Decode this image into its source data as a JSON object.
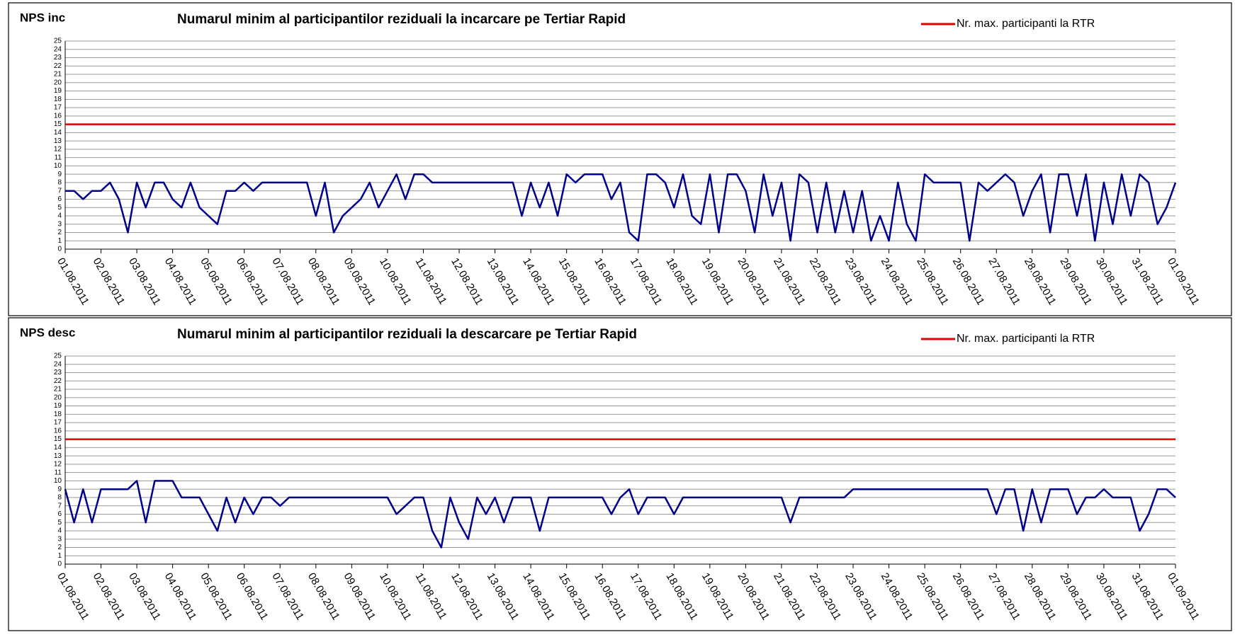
{
  "chart_data": [
    {
      "type": "line",
      "label": "NPS inc",
      "title": "Numarul minim al participantilor reziduali la incarcare  pe Tertiar Rapid",
      "categories": [
        "01.08.2011",
        null,
        null,
        null,
        "02.08.2011",
        null,
        null,
        null,
        "03.08.2011",
        null,
        null,
        null,
        "04.08.2011",
        null,
        null,
        null,
        "05.08.2011",
        null,
        null,
        null,
        "06.08.2011",
        null,
        null,
        null,
        "07.08.2011",
        null,
        null,
        null,
        "08.08.2011",
        null,
        null,
        null,
        "09.08.2011",
        null,
        null,
        null,
        "10.08.2011",
        null,
        null,
        null,
        "11.08.2011",
        null,
        null,
        null,
        "12.08.2011",
        null,
        null,
        null,
        "13.08.2011",
        null,
        null,
        null,
        "14.08.2011",
        null,
        null,
        null,
        "15.08.2011",
        null,
        null,
        null,
        "16.08.2011",
        null,
        null,
        null,
        "17.08.2011",
        null,
        null,
        null,
        "18.08.2011",
        null,
        null,
        null,
        "19.08.2011",
        null,
        null,
        null,
        "20.08.2011",
        null,
        null,
        null,
        "21.08.2011",
        null,
        null,
        null,
        "22.08.2011",
        null,
        null,
        null,
        "23.08.2011",
        null,
        null,
        null,
        "24.08.2011",
        null,
        null,
        null,
        "25.08.2011",
        null,
        null,
        null,
        "26.08.2011",
        null,
        null,
        null,
        "27.08.2011",
        null,
        null,
        null,
        "28.08.2011",
        null,
        null,
        null,
        "29.08.2011",
        null,
        null,
        null,
        "30.08.2011",
        null,
        null,
        null,
        "31.08.2011",
        null,
        null,
        null,
        "01.09.2011"
      ],
      "series": [
        {
          "color": "#00008b",
          "values": [
            7,
            7,
            6,
            7,
            7,
            8,
            6,
            2,
            8,
            5,
            8,
            8,
            6,
            5,
            8,
            5,
            4,
            3,
            7,
            7,
            8,
            7,
            8,
            8,
            8,
            8,
            8,
            8,
            4,
            8,
            2,
            4,
            5,
            6,
            8,
            5,
            7,
            9,
            6,
            9,
            9,
            8,
            8,
            8,
            8,
            8,
            8,
            8,
            8,
            8,
            8,
            4,
            8,
            5,
            8,
            4,
            9,
            8,
            9,
            9,
            9,
            6,
            8,
            2,
            1,
            9,
            9,
            8,
            5,
            9,
            4,
            3,
            9,
            2,
            9,
            9,
            7,
            2,
            9,
            4,
            8,
            1,
            9,
            8,
            2,
            8,
            2,
            7,
            2,
            7,
            1,
            4,
            1,
            8,
            3,
            1,
            9,
            8,
            8,
            8,
            8,
            1,
            8,
            7,
            8,
            9,
            8,
            4,
            7,
            9,
            2,
            9,
            9,
            4,
            9,
            1,
            8,
            3,
            9,
            4,
            9,
            8,
            3,
            5,
            8
          ]
        }
      ],
      "reference_line": {
        "name": "Nr. max. participanti la RTR",
        "value": 15,
        "color": "#e00000"
      },
      "ylim": [
        0,
        25
      ],
      "yticks": [
        0,
        1,
        2,
        3,
        4,
        5,
        6,
        7,
        8,
        9,
        10,
        11,
        12,
        13,
        14,
        15,
        16,
        17,
        18,
        19,
        20,
        21,
        22,
        23,
        24,
        25
      ],
      "grid": true
    },
    {
      "type": "line",
      "label": "NPS desc",
      "title": "Numarul minim al participantilor reziduali la descarcare  pe Tertiar Rapid",
      "categories": [
        "01.08.2011",
        null,
        null,
        null,
        "02.08.2011",
        null,
        null,
        null,
        "03.08.2011",
        null,
        null,
        null,
        "04.08.2011",
        null,
        null,
        null,
        "05.08.2011",
        null,
        null,
        null,
        "06.08.2011",
        null,
        null,
        null,
        "07.08.2011",
        null,
        null,
        null,
        "08.08.2011",
        null,
        null,
        null,
        "09.08.2011",
        null,
        null,
        null,
        "10.08.2011",
        null,
        null,
        null,
        "11.08.2011",
        null,
        null,
        null,
        "12.08.2011",
        null,
        null,
        null,
        "13.08.2011",
        null,
        null,
        null,
        "14.08.2011",
        null,
        null,
        null,
        "15.08.2011",
        null,
        null,
        null,
        "16.08.2011",
        null,
        null,
        null,
        "17.08.2011",
        null,
        null,
        null,
        "18.08.2011",
        null,
        null,
        null,
        "19.08.2011",
        null,
        null,
        null,
        "20.08.2011",
        null,
        null,
        null,
        "21.08.2011",
        null,
        null,
        null,
        "22.08.2011",
        null,
        null,
        null,
        "23.08.2011",
        null,
        null,
        null,
        "24.08.2011",
        null,
        null,
        null,
        "25.08.2011",
        null,
        null,
        null,
        "26.08.2011",
        null,
        null,
        null,
        "27.08.2011",
        null,
        null,
        null,
        "28.08.2011",
        null,
        null,
        null,
        "29.08.2011",
        null,
        null,
        null,
        "30.08.2011",
        null,
        null,
        null,
        "31.08.2011",
        null,
        null,
        null,
        "01.09.2011"
      ],
      "series": [
        {
          "color": "#00008b",
          "values": [
            9,
            5,
            9,
            5,
            9,
            9,
            9,
            9,
            10,
            5,
            10,
            10,
            10,
            8,
            8,
            8,
            6,
            4,
            8,
            5,
            8,
            6,
            8,
            8,
            7,
            8,
            8,
            8,
            8,
            8,
            8,
            8,
            8,
            8,
            8,
            8,
            8,
            6,
            7,
            8,
            8,
            4,
            2,
            8,
            5,
            3,
            8,
            6,
            8,
            5,
            8,
            8,
            8,
            4,
            8,
            8,
            8,
            8,
            8,
            8,
            8,
            6,
            8,
            9,
            6,
            8,
            8,
            8,
            6,
            8,
            8,
            8,
            8,
            8,
            8,
            8,
            8,
            8,
            8,
            8,
            8,
            5,
            8,
            8,
            8,
            8,
            8,
            8,
            9,
            9,
            9,
            9,
            9,
            9,
            9,
            9,
            9,
            9,
            9,
            9,
            9,
            9,
            9,
            9,
            6,
            9,
            9,
            4,
            9,
            5,
            9,
            9,
            9,
            6,
            8,
            8,
            9,
            8,
            8,
            8,
            4,
            6,
            9,
            9,
            8
          ]
        }
      ],
      "reference_line": {
        "name": "Nr. max. participanti la RTR",
        "value": 15,
        "color": "#e00000"
      },
      "ylim": [
        0,
        25
      ],
      "yticks": [
        0,
        1,
        2,
        3,
        4,
        5,
        6,
        7,
        8,
        9,
        10,
        11,
        12,
        13,
        14,
        15,
        16,
        17,
        18,
        19,
        20,
        21,
        22,
        23,
        24,
        25
      ],
      "grid": true
    }
  ]
}
